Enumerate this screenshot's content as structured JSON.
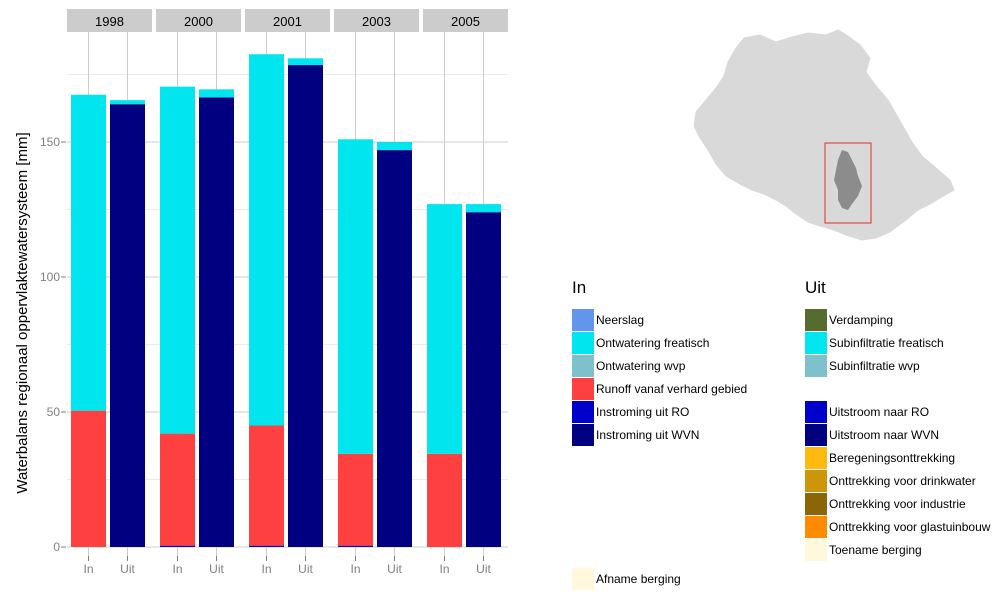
{
  "chart_data": {
    "type": "bar",
    "stacked": true,
    "faceted_by": "year",
    "panels": [
      "1998",
      "2000",
      "2001",
      "2003",
      "2005"
    ],
    "x_categories": [
      "In",
      "Uit"
    ],
    "ylabel": "Waterbalans regionaal oppervlaktewatersysteem [mm]",
    "ylim": [
      0,
      190
    ],
    "y_ticks": [
      0,
      50,
      100,
      150
    ],
    "grid": true,
    "in_series": [
      {
        "name": "Neerslag",
        "color": "#6495ED",
        "values": [
          0,
          0,
          0,
          0,
          0
        ]
      },
      {
        "name": "Ontwatering freatisch",
        "color": "#00E5EE",
        "values": [
          117,
          128.5,
          137.5,
          116.5,
          92.5
        ]
      },
      {
        "name": "Ontwatering wvp",
        "color": "#7EC0CC",
        "values": [
          0,
          0,
          0,
          0,
          0
        ]
      },
      {
        "name": "Runoff vanaf verhard gebied",
        "color": "#FF4040",
        "values": [
          50.5,
          41.5,
          44.5,
          34,
          34.5
        ]
      },
      {
        "name": "Instroming uit RO",
        "color": "#0000CD",
        "values": [
          0,
          0.5,
          0.5,
          0.5,
          0
        ]
      },
      {
        "name": "Instroming uit WVN",
        "color": "#000080",
        "values": [
          0,
          0,
          0,
          0,
          0
        ]
      }
    ],
    "uit_series": [
      {
        "name": "Verdamping",
        "color": "#556B2F",
        "values": [
          0,
          0,
          0,
          0,
          0
        ]
      },
      {
        "name": "Subinfiltratie freatisch",
        "color": "#00E5EE",
        "values": [
          1.5,
          3,
          2.5,
          3,
          3
        ]
      },
      {
        "name": "Subinfiltratie wvp",
        "color": "#7EC0CC",
        "values": [
          0,
          0,
          0,
          0,
          0
        ]
      },
      {
        "name": "Uitstroom naar RO",
        "color": "#0000CD",
        "values": [
          0,
          0,
          0,
          0,
          0
        ]
      },
      {
        "name": "Uitstroom naar WVN",
        "color": "#000080",
        "values": [
          164,
          166.5,
          178.5,
          147,
          124
        ]
      },
      {
        "name": "Beregeningsonttrekking",
        "color": "#FFB90F",
        "values": [
          0,
          0,
          0,
          0,
          0
        ]
      },
      {
        "name": "Onttrekking voor drinkwater",
        "color": "#CD950C",
        "values": [
          0,
          0,
          0,
          0,
          0
        ]
      },
      {
        "name": "Onttrekking voor industrie",
        "color": "#8B6508",
        "values": [
          0,
          0,
          0,
          0,
          0
        ]
      },
      {
        "name": "Onttrekking voor glastuinbouw",
        "color": "#FF8C00",
        "values": [
          0,
          0,
          0,
          0,
          0
        ]
      },
      {
        "name": "Toename berging",
        "color": "#FFF8DC",
        "values": [
          0,
          0,
          0,
          0,
          0
        ]
      }
    ],
    "in_afname_berging": {
      "name": "Afname berging",
      "color": "#FFF8DC",
      "values": [
        0,
        0,
        0,
        0,
        0
      ]
    }
  },
  "legend": {
    "in_title": "In",
    "uit_title": "Uit",
    "in_items": [
      {
        "label": "Neerslag",
        "color": "#6495ED"
      },
      {
        "label": "Ontwatering freatisch",
        "color": "#00E5EE"
      },
      {
        "label": "Ontwatering wvp",
        "color": "#7EC0CC"
      },
      {
        "label": "Runoff vanaf verhard gebied",
        "color": "#FF4040"
      },
      {
        "label": "Instroming uit RO",
        "color": "#0000CD"
      },
      {
        "label": "Instroming uit WVN",
        "color": "#000080"
      }
    ],
    "in_bottom": {
      "label": "Afname berging",
      "color": "#FFF8DC"
    },
    "uit_items_top": [
      {
        "label": "Verdamping",
        "color": "#556B2F"
      },
      {
        "label": "Subinfiltratie freatisch",
        "color": "#00E5EE"
      },
      {
        "label": "Subinfiltratie wvp",
        "color": "#7EC0CC"
      }
    ],
    "uit_items_bottom": [
      {
        "label": "Uitstroom naar RO",
        "color": "#0000CD"
      },
      {
        "label": "Uitstroom naar WVN",
        "color": "#000080"
      },
      {
        "label": "Beregeningsonttrekking",
        "color": "#FFB90F"
      },
      {
        "label": "Onttrekking voor drinkwater",
        "color": "#CD950C"
      },
      {
        "label": "Onttrekking voor industrie",
        "color": "#8B6508"
      },
      {
        "label": "Onttrekking voor glastuinbouw",
        "color": "#FF8C00"
      },
      {
        "label": "Toename berging",
        "color": "#FFF8DC"
      }
    ]
  },
  "colors": {
    "map_region": "#D9D9D9",
    "map_highlight": "#8C8C8C",
    "map_box": "#E03030",
    "strip_bg": "#CCCCCC",
    "grid": "#CCCCCC"
  }
}
